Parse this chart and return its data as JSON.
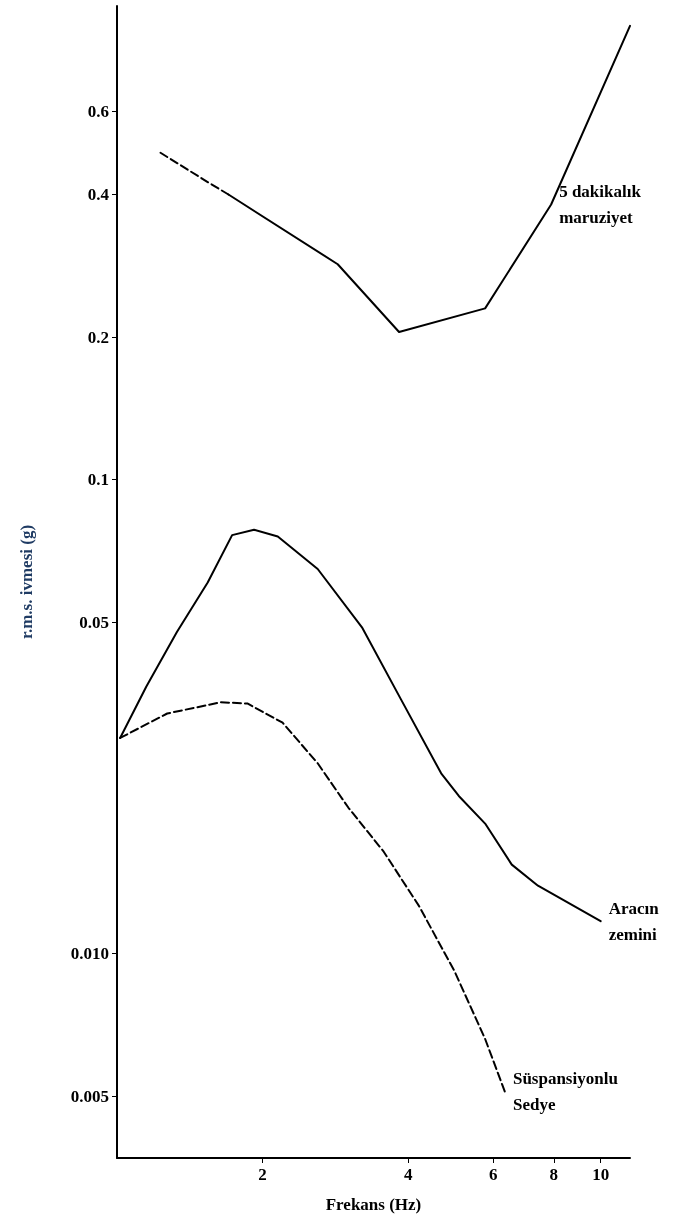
{
  "chart_data": {
    "type": "line",
    "xlabel": "Frekans (Hz)",
    "ylabel": "r.m.s. ivmesi (g)",
    "log": "xy",
    "grid": false,
    "marker": "none",
    "xlim": [
      1,
      11.5
    ],
    "xticks": [
      2,
      4,
      6,
      8,
      10
    ],
    "ylim": [
      0.0037,
      1
    ],
    "yticks": [
      0.005,
      {
        "value": 0.01,
        "label": "0.010"
      },
      0.05,
      0.1,
      0.2,
      0.4,
      0.6
    ],
    "series": [
      {
        "color": "#000000",
        "line_style": "dashed",
        "x": [
          1.23,
          1.54,
          1.7
        ],
        "values": [
          0.49,
          0.425,
          0.4
        ]
      },
      {
        "name": "5 dakikalık\nmaruziyet",
        "color": "#000000",
        "line_style": "solid",
        "x": [
          1.7,
          2.86,
          3.83,
          5.77,
          7.9,
          11.5
        ],
        "values": [
          0.4,
          0.285,
          0.205,
          0.23,
          0.381,
          0.908
        ]
      },
      {
        "name": "Aracın\nzemini",
        "color": "#000000",
        "line_style": "solid",
        "x": [
          1.015,
          1.15,
          1.33,
          1.54,
          1.73,
          1.92,
          2.15,
          2.6,
          3.21,
          3.87,
          4.68,
          5.09,
          5.77,
          6.55,
          7.42,
          10
        ],
        "values": [
          0.0285,
          0.0366,
          0.0477,
          0.0607,
          0.0764,
          0.0784,
          0.0759,
          0.0648,
          0.0488,
          0.0343,
          0.024,
          0.0215,
          0.0188,
          0.0154,
          0.0139,
          0.0117
        ]
      },
      {
        "name": "Süspansiyonlu\nSedye",
        "color": "#000000",
        "line_style": "dashed",
        "x": [
          1.015,
          1.27,
          1.64,
          1.86,
          2.2,
          2.6,
          3.01,
          3.56,
          4.21,
          4.98,
          5.77,
          6.34
        ],
        "values": [
          0.0285,
          0.0321,
          0.0339,
          0.0337,
          0.0307,
          0.0252,
          0.0203,
          0.0164,
          0.0126,
          0.0092,
          0.0066,
          0.0051
        ]
      }
    ]
  }
}
